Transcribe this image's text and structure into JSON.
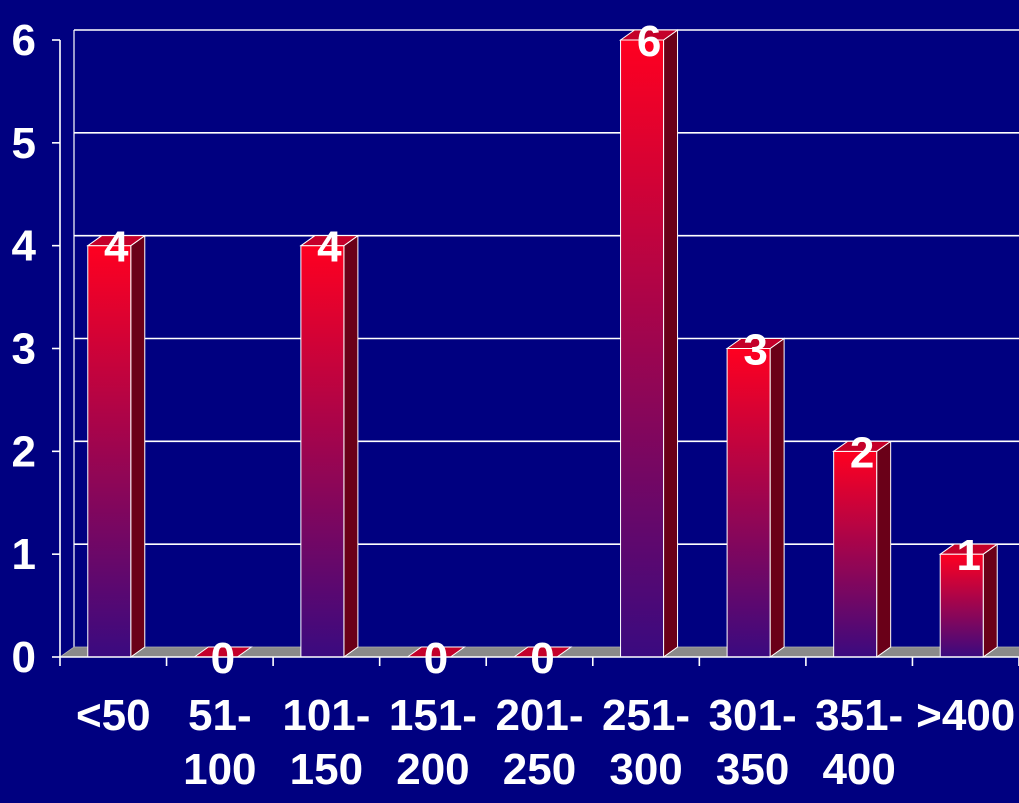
{
  "chart_data": {
    "type": "bar",
    "categories": [
      [
        "<50"
      ],
      [
        "51-",
        "100"
      ],
      [
        "101-",
        "150"
      ],
      [
        "151-",
        "200"
      ],
      [
        "201-",
        "250"
      ],
      [
        "251-",
        "300"
      ],
      [
        "301-",
        "350"
      ],
      [
        "351-",
        "400"
      ],
      [
        ">400"
      ]
    ],
    "values": [
      4,
      0,
      4,
      0,
      0,
      6,
      3,
      2,
      1
    ],
    "data_labels": [
      "4",
      "0",
      "4",
      "0",
      "0",
      "6",
      "3",
      "2",
      "1"
    ],
    "y_ticks": [
      "0",
      "1",
      "2",
      "3",
      "4",
      "5",
      "6"
    ],
    "ylim": [
      0,
      6
    ],
    "grid": true,
    "legend": "none",
    "style": "3d-bar",
    "colors": {
      "background": "#000080",
      "bar_top": "#ff0020",
      "bar_bottom": "#3a0a80",
      "bar_side": "#6a0018",
      "bar_cap": "#c4002a",
      "floor": "#8a8a8a",
      "floor_side": "#6e6e6e",
      "grid": "#ffffff",
      "text": "#ffffff"
    }
  }
}
